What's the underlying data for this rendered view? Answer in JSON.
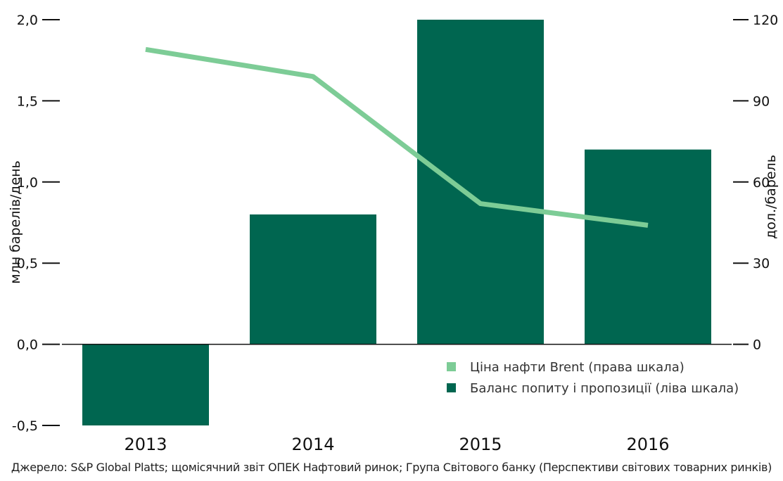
{
  "chart_data": {
    "type": "bar+line",
    "categories": [
      "2013",
      "2014",
      "2015",
      "2016"
    ],
    "series": [
      {
        "name": "Баланс попиту і пропозиції (ліва шкала)",
        "type": "bar",
        "axis": "left",
        "values": [
          -0.5,
          0.8,
          2.0,
          1.2
        ],
        "color": "#006650"
      },
      {
        "name": "Ціна нафти Brent (права шкала)",
        "type": "line",
        "axis": "right",
        "values": [
          109,
          99,
          52,
          44
        ],
        "color": "#7dcc96"
      }
    ],
    "left_axis": {
      "label": "млн барелів/день",
      "ylim": [
        -0.5,
        2.0
      ],
      "ticks": [
        "2,0",
        "1,5",
        "1,0",
        "0,5",
        "0,0",
        "-0,5"
      ],
      "tick_values": [
        2.0,
        1.5,
        1.0,
        0.5,
        0.0,
        -0.5
      ]
    },
    "right_axis": {
      "label": "дол./барель",
      "ylim": [
        -30,
        120
      ],
      "ticks": [
        "120",
        "90",
        "60",
        "30",
        "0"
      ],
      "tick_values": [
        120,
        90,
        60,
        30,
        0
      ]
    },
    "legend_position": "bottom-right",
    "grid": false
  },
  "source": "Джерело: S&P Global Platts; щомісячний звіт ОПЕК Нафтовий ринок; Група Світового банку (Перспективи світових товарних ринків)"
}
